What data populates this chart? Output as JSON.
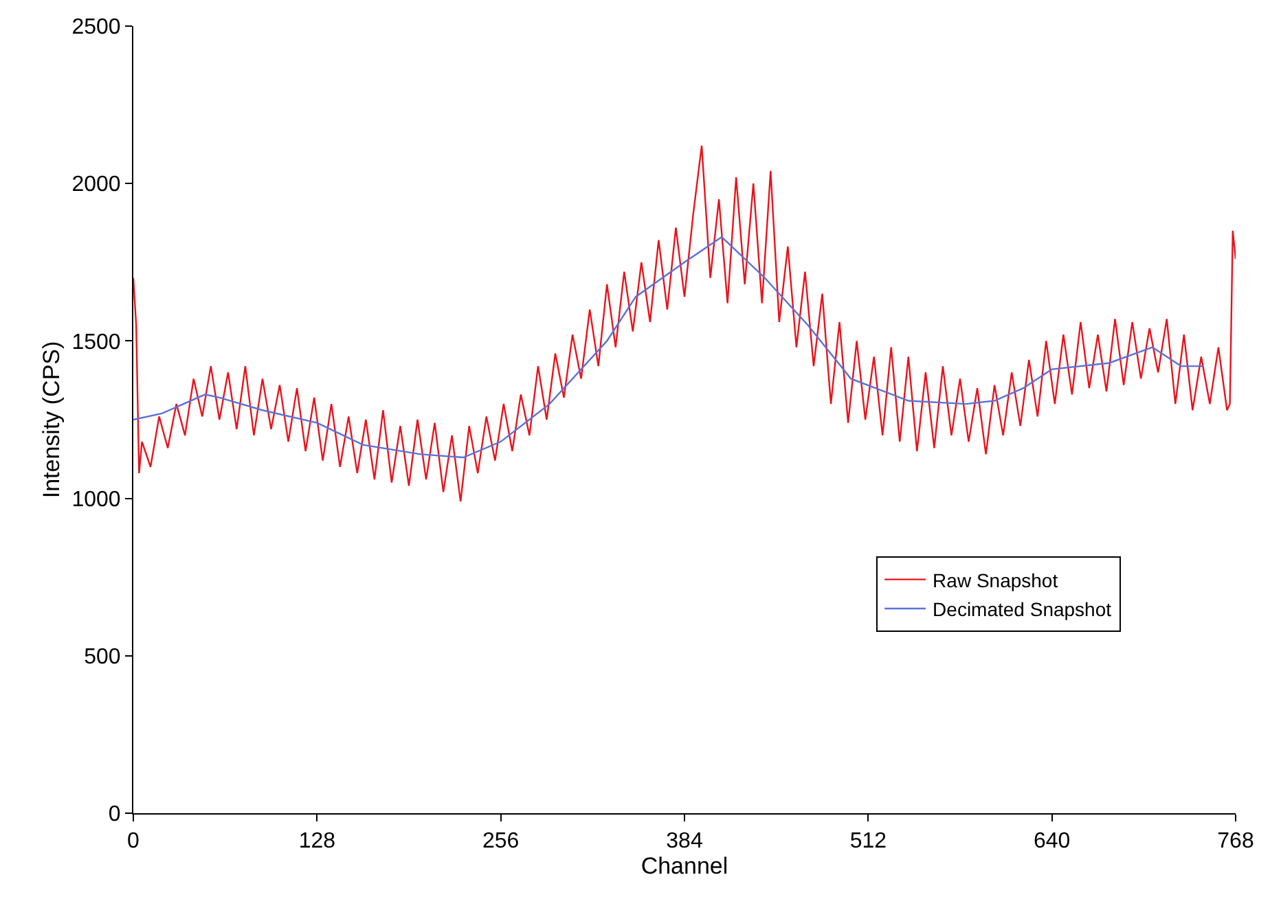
{
  "chart_data": {
    "type": "line",
    "xlabel": "Channel",
    "ylabel": "Intensity (CPS)",
    "xlim": [
      0,
      768
    ],
    "xticks": [
      0,
      128,
      256,
      384,
      512,
      640,
      768
    ],
    "ylim": [
      0,
      2500
    ],
    "yticks": [
      0,
      500,
      1000,
      1500,
      2000,
      2500
    ],
    "legend": "right",
    "marker": "none",
    "line_style": "solid",
    "series": [
      {
        "name": "Raw Snapshot",
        "color": "#e8141c",
        "x": [
          0,
          2,
          4,
          6,
          12,
          18,
          24,
          30,
          36,
          42,
          48,
          54,
          60,
          66,
          72,
          78,
          84,
          90,
          96,
          102,
          108,
          114,
          120,
          126,
          132,
          138,
          144,
          150,
          156,
          162,
          168,
          174,
          180,
          186,
          192,
          198,
          204,
          210,
          216,
          222,
          228,
          234,
          240,
          246,
          252,
          258,
          264,
          270,
          276,
          282,
          288,
          294,
          300,
          306,
          312,
          318,
          324,
          330,
          336,
          342,
          348,
          354,
          360,
          366,
          372,
          378,
          384,
          390,
          396,
          402,
          408,
          414,
          420,
          426,
          432,
          438,
          444,
          450,
          456,
          462,
          468,
          474,
          480,
          486,
          492,
          498,
          504,
          510,
          516,
          522,
          528,
          534,
          540,
          546,
          552,
          558,
          564,
          570,
          576,
          582,
          588,
          594,
          600,
          606,
          612,
          618,
          624,
          630,
          636,
          642,
          648,
          654,
          660,
          666,
          672,
          678,
          684,
          690,
          696,
          702,
          708,
          714,
          720,
          726,
          732,
          738,
          744,
          750,
          756,
          762,
          764,
          766,
          768
        ],
        "values": [
          1700,
          1550,
          1080,
          1180,
          1100,
          1260,
          1160,
          1300,
          1200,
          1380,
          1260,
          1420,
          1250,
          1400,
          1220,
          1420,
          1200,
          1380,
          1220,
          1360,
          1180,
          1350,
          1150,
          1320,
          1120,
          1300,
          1100,
          1260,
          1080,
          1250,
          1060,
          1280,
          1050,
          1230,
          1040,
          1250,
          1060,
          1240,
          1020,
          1200,
          990,
          1230,
          1080,
          1260,
          1120,
          1300,
          1150,
          1330,
          1200,
          1420,
          1250,
          1460,
          1320,
          1520,
          1380,
          1600,
          1420,
          1680,
          1480,
          1720,
          1530,
          1750,
          1560,
          1820,
          1600,
          1860,
          1640,
          1900,
          2120,
          1700,
          1950,
          1620,
          2020,
          1680,
          2000,
          1620,
          2040,
          1560,
          1800,
          1480,
          1720,
          1420,
          1650,
          1300,
          1560,
          1240,
          1500,
          1250,
          1450,
          1200,
          1480,
          1180,
          1450,
          1150,
          1400,
          1160,
          1420,
          1200,
          1380,
          1180,
          1350,
          1140,
          1360,
          1200,
          1400,
          1230,
          1440,
          1260,
          1500,
          1300,
          1520,
          1330,
          1560,
          1350,
          1520,
          1340,
          1570,
          1360,
          1560,
          1380,
          1540,
          1400,
          1570,
          1300,
          1520,
          1280,
          1450,
          1300,
          1480,
          1280,
          1300,
          1850,
          1760
        ]
      },
      {
        "name": "Decimated Snapshot",
        "color": "#5a72d8",
        "x": [
          0,
          20,
          50,
          60,
          90,
          128,
          160,
          200,
          230,
          256,
          290,
          330,
          350,
          384,
          410,
          440,
          470,
          500,
          540,
          580,
          600,
          620,
          640,
          680,
          710,
          730,
          745
        ],
        "values": [
          1250,
          1270,
          1330,
          1320,
          1280,
          1240,
          1170,
          1140,
          1130,
          1180,
          1300,
          1500,
          1640,
          1750,
          1830,
          1700,
          1550,
          1380,
          1310,
          1300,
          1310,
          1350,
          1410,
          1430,
          1480,
          1420,
          1420
        ]
      }
    ]
  }
}
